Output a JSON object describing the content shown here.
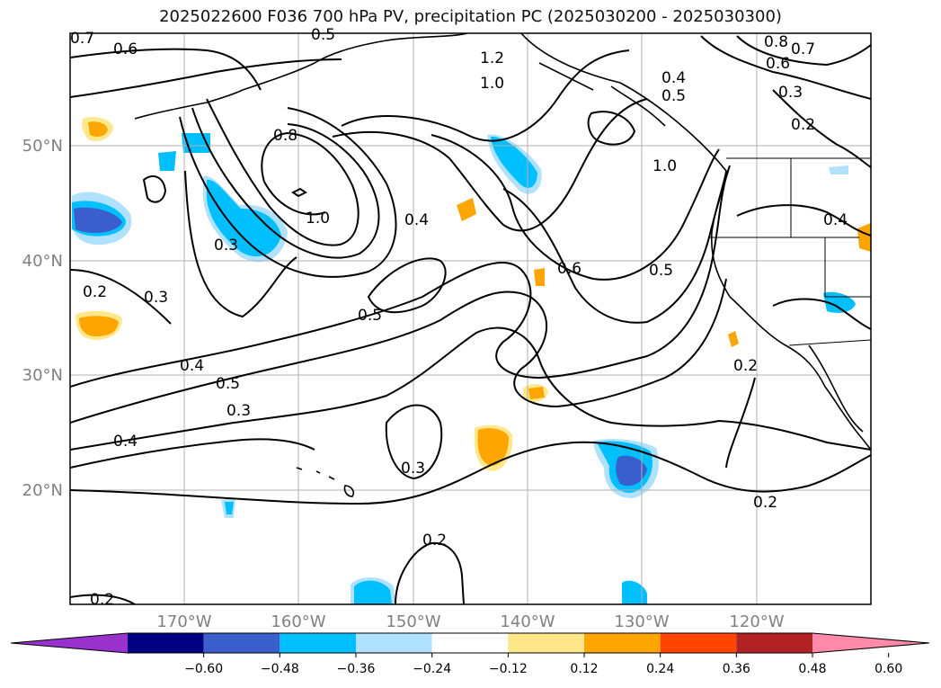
{
  "title": "2025022600 F036 700 hPa PV, precipitation PC (2025030200 - 2025030300)",
  "map": {
    "lon_ticks": [
      "170°W",
      "160°W",
      "150°W",
      "140°W",
      "130°W",
      "120°W"
    ],
    "lat_ticks": [
      "50°N",
      "40°N",
      "30°N",
      "20°N"
    ],
    "tick_color": "#808080",
    "grid": true
  },
  "contours": {
    "labels": [
      "0.7",
      "0.6",
      "0.5",
      "1.2",
      "1.0",
      "0.8",
      "0.7",
      "0.6",
      "0.4",
      "0.5",
      "0.3",
      "0.2",
      "0.8",
      "1.0",
      "1.0",
      "0.4",
      "0.3",
      "0.2",
      "0.3",
      "0.5",
      "0.6",
      "0.5",
      "0.4",
      "0.4",
      "0.5",
      "0.3",
      "0.4",
      "0.3",
      "0.2",
      "0.2",
      "0.2",
      "0.2"
    ]
  },
  "colorbar": {
    "ticks": [
      "−0.60",
      "−0.48",
      "−0.36",
      "−0.24",
      "−0.12",
      "0.12",
      "0.24",
      "0.36",
      "0.48",
      "0.60"
    ],
    "colors": [
      "#9932cc",
      "#000080",
      "#3a5fcd",
      "#00bfff",
      "#b0e2ff",
      "#ffffff",
      "#ffe88c",
      "#ffa500",
      "#ff4500",
      "#b22222",
      "#ff89a8"
    ]
  }
}
